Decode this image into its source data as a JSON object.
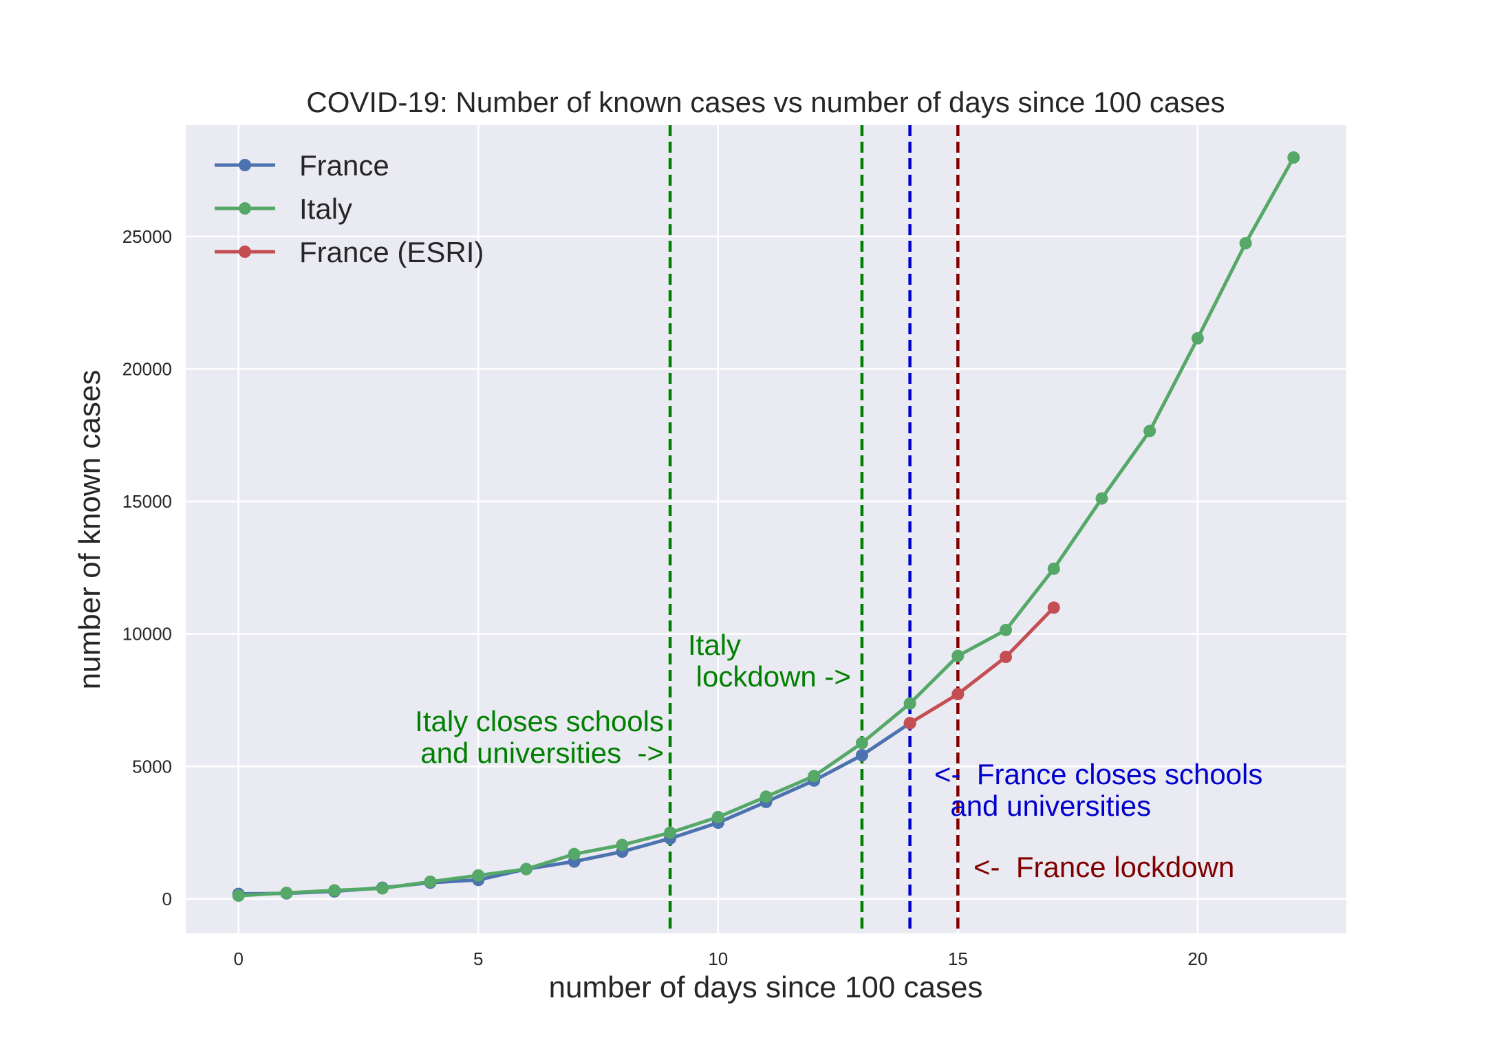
{
  "chart_data": {
    "type": "line",
    "title": "COVID-19: Number of known cases vs number of days since 100 cases",
    "xlabel": "number of days since 100 cases",
    "ylabel": "number of known cases",
    "xlim": [
      -1.1,
      23.1
    ],
    "ylim": [
      -1300,
      29200
    ],
    "x_ticks": [
      0,
      5,
      10,
      15,
      20
    ],
    "y_ticks": [
      0,
      5000,
      10000,
      15000,
      20000,
      25000
    ],
    "grid": true,
    "legend_position": "top-left",
    "series": [
      {
        "name": "France",
        "color": "#4c72b0",
        "x": [
          0,
          1,
          2,
          3,
          4,
          5,
          6,
          7,
          8,
          9,
          10,
          11,
          12,
          13,
          14
        ],
        "y": [
          190,
          212,
          285,
          423,
          613,
          716,
          1126,
          1412,
          1784,
          2281,
          2876,
          3661,
          4469,
          5423,
          6633
        ]
      },
      {
        "name": "Italy",
        "color": "#55a868",
        "x": [
          0,
          1,
          2,
          3,
          4,
          5,
          6,
          7,
          8,
          9,
          10,
          11,
          12,
          13,
          14,
          15,
          16,
          17,
          18,
          19,
          20,
          21,
          22
        ],
        "y": [
          124,
          229,
          322,
          400,
          650,
          888,
          1128,
          1694,
          2036,
          2502,
          3089,
          3858,
          4636,
          5883,
          7375,
          9172,
          10149,
          12462,
          15113,
          17660,
          21157,
          24747,
          27980
        ]
      },
      {
        "name": "France (ESRI)",
        "color": "#c44e52",
        "x": [
          14,
          15,
          16,
          17
        ],
        "y": [
          6633,
          7730,
          9134,
          10995
        ]
      }
    ],
    "vertical_lines": [
      {
        "x": 9,
        "color": "#008000"
      },
      {
        "x": 13,
        "color": "#008000"
      },
      {
        "x": 14,
        "color": "#0000cc"
      },
      {
        "x": 15,
        "color": "#800000"
      }
    ],
    "annotations": [
      {
        "lines": [
          "Italy closes schools",
          " and universities  ->"
        ],
        "color": "#008000"
      },
      {
        "lines": [
          "Italy",
          " lockdown ->"
        ],
        "color": "#008000"
      },
      {
        "lines": [
          "<-  France closes schools",
          "  and universities"
        ],
        "color": "#0000cc"
      },
      {
        "lines": [
          "<-  France lockdown"
        ],
        "color": "#800000"
      }
    ]
  }
}
